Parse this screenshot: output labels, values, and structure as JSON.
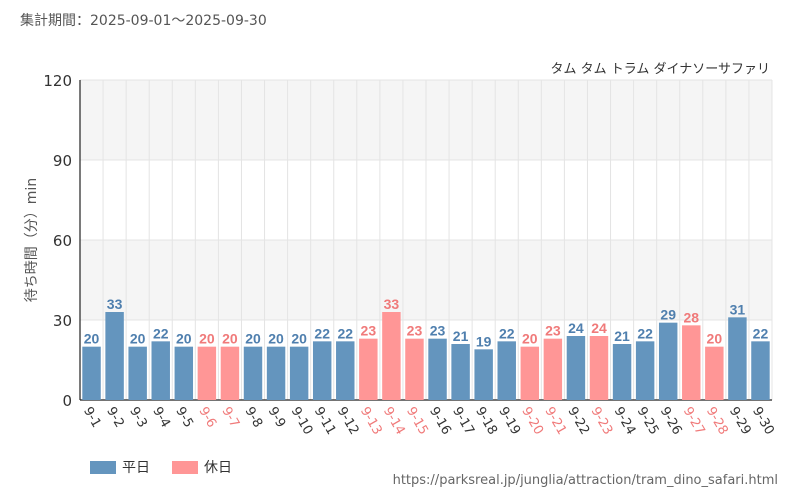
{
  "header": {
    "period": "集計期間：2025-09-01～2025-09-30"
  },
  "colors": {
    "weekday": "#6495be",
    "holiday": "#ff9696",
    "weekday_label": "#4f7fae",
    "holiday_label": "#f07a7a"
  },
  "legend": {
    "weekday": "平日",
    "holiday": "休日"
  },
  "footer": {
    "source": "https://parksreal.jp/junglia/attraction/tram_dino_safari.html"
  },
  "chart_data": {
    "type": "bar",
    "title": "タム タム トラム ダイナソーサファリ",
    "ylabel": "待ち時間（分）min",
    "xlabel": "",
    "ylim": [
      0,
      120
    ],
    "yticks": [
      0,
      30,
      60,
      90,
      120
    ],
    "categories": [
      "9-1",
      "9-2",
      "9-3",
      "9-4",
      "9-5",
      "9-6",
      "9-7",
      "9-8",
      "9-9",
      "9-10",
      "9-11",
      "9-12",
      "9-13",
      "9-14",
      "9-15",
      "9-16",
      "9-17",
      "9-18",
      "9-19",
      "9-20",
      "9-21",
      "9-22",
      "9-23",
      "9-24",
      "9-25",
      "9-26",
      "9-27",
      "9-28",
      "9-29",
      "9-30"
    ],
    "values": [
      20,
      33,
      20,
      22,
      20,
      20,
      20,
      20,
      20,
      20,
      22,
      22,
      23,
      33,
      23,
      23,
      21,
      19,
      22,
      20,
      23,
      24,
      24,
      21,
      22,
      29,
      28,
      20,
      31,
      22
    ],
    "day_type": [
      "weekday",
      "weekday",
      "weekday",
      "weekday",
      "weekday",
      "holiday",
      "holiday",
      "weekday",
      "weekday",
      "weekday",
      "weekday",
      "weekday",
      "holiday",
      "holiday",
      "holiday",
      "weekday",
      "weekday",
      "weekday",
      "weekday",
      "holiday",
      "holiday",
      "weekday",
      "holiday",
      "weekday",
      "weekday",
      "weekday",
      "holiday",
      "holiday",
      "weekday",
      "weekday"
    ]
  }
}
